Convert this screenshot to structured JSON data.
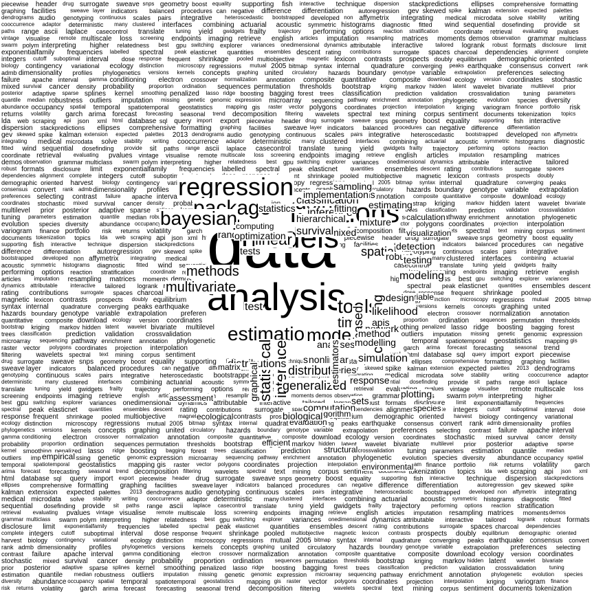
{
  "colors": {
    "text": "#000000",
    "background": "#ffffff"
  },
  "featured_words": [
    "data",
    "analysis",
    "models",
    "functions",
    "regression",
    "package",
    "using",
    "bayesian",
    "estimation",
    "model",
    "tools",
    "time",
    "linear",
    "methods",
    "multivariate",
    "inference",
    "statistical",
    "interface",
    "clustering",
    "distribution",
    "generalized",
    "based",
    "distributions",
    "classification",
    "algorithms",
    "network",
    "simulation",
    "mixed",
    "test",
    "selection",
    "tests",
    "survival",
    "random",
    "likelihood",
    "statistics",
    "spatial",
    "files",
    "analyses",
    "modeling",
    "robust",
    "fitting",
    "testing",
    "series",
    "graphical",
    "mixture",
    "sampling",
    "implementation",
    "visualization",
    "estimating",
    "computation",
    "optimization",
    "response",
    "nonlinear",
    "method",
    "detection",
    "plotting",
    "computing",
    "matrix",
    "variable",
    "estimators",
    "apis",
    "modelling",
    "hierarchical",
    "algorithm",
    "design",
    "sets",
    "species",
    "ecological",
    "evaluation",
    "structural",
    "assessment",
    "biological",
    "calculation",
    "efficient",
    "environmental",
    "empirical",
    "composite"
  ],
  "background_words": [
    "piecewise",
    "header",
    "drug",
    "surrogate",
    "sweave",
    "snps",
    "geometry",
    "boost",
    "equality",
    "supporting",
    "fish",
    "interactive",
    "technique",
    "dispersion",
    "stackpredictions",
    "ellipses",
    "comprehensive",
    "formatting",
    "graphing",
    "facilities",
    "sweave",
    "layer",
    "indicators",
    "balanced",
    "procedures",
    "can",
    "negative",
    "difference",
    "differentiation",
    "autoregression",
    "gev",
    "skewed",
    "spike",
    "kalman",
    "extension",
    "expected",
    "palettes",
    "2013",
    "dendrograms",
    "audio",
    "genotyping",
    "continuous",
    "scales",
    "pairs",
    "integrative",
    "heteroscedastic",
    "bootstrapped",
    "developed",
    "non",
    "affymetrix",
    "integrating",
    "medical",
    "microdata",
    "solve",
    "stability",
    "writing",
    "cooccurrence",
    "adaptor",
    "deterministic",
    "many",
    "clustered",
    "interfaces",
    "combining",
    "actuarial",
    "acoustic",
    "symmetric",
    "histograms",
    "diagnostic",
    "fitted",
    "wind",
    "sequential",
    "dosefinding",
    "provide",
    "sit",
    "paths",
    "range",
    "ascii",
    "laplace",
    "casecontrol",
    "translate",
    "tuning",
    "yield",
    "gwidgets",
    "frailty",
    "trajectory",
    "performing",
    "options",
    "reaction",
    "stratification",
    "coordinate",
    "retrieval",
    "evaluating",
    "pvalues",
    "vintage",
    "visualise",
    "remote",
    "multiscale",
    "loss",
    "screening",
    "endpoints",
    "imaging",
    "retrieve",
    "english",
    "articles",
    "imputation",
    "resampling",
    "matrices",
    "moments",
    "demos",
    "observation",
    "grammar",
    "multiclass",
    "swarm",
    "polym",
    "interpreting",
    "higher",
    "relatedness",
    "best",
    "gpu",
    "switching",
    "explorer",
    "variances",
    "onedimensional",
    "dynamics",
    "attributable",
    "interactive",
    "tailored",
    "logrank",
    "robust",
    "formats",
    "disclosure",
    "limit",
    "exponentialfamily",
    "frequencies",
    "labelled",
    "spectral",
    "peak",
    "elasticnet",
    "quantities",
    "ensembles",
    "descent",
    "rating",
    "contributions",
    "surrogate",
    "spaces",
    "charcoal",
    "dependencies",
    "alignment",
    "complete",
    "integers",
    "cutoff",
    "suboptimal",
    "interval",
    "dose",
    "response",
    "frequent",
    "shrinkage",
    "pooled",
    "multiobjective",
    "magnetic",
    "lexicon",
    "contrasts",
    "prospects",
    "doubly",
    "equilibrium",
    "demographic",
    "oriented",
    "harvest",
    "biology",
    "contingency",
    "variational",
    "ecology",
    "distinction",
    "microscopy",
    "regressions",
    "mutual",
    "2005",
    "bitmap",
    "syntax",
    "internal",
    "quadrature",
    "converging",
    "peaks",
    "earthquake",
    "consensus",
    "convert",
    "rank",
    "admb",
    "dimensionality",
    "profiles",
    "phylogenetics",
    "versions",
    "kernels",
    "concepts",
    "graphing",
    "united",
    "circulatory",
    "hazards",
    "boundary",
    "genotype",
    "variable",
    "extrapolation",
    "preferences",
    "selecting",
    "contrast",
    "failure",
    "apache",
    "interval",
    "gamma",
    "conditioning",
    "electron",
    "crossover",
    "normalization",
    "annotation",
    "composite",
    "quantitative",
    "composite",
    "download",
    "ecology",
    "version",
    "coordinates",
    "stochastic",
    "mixed",
    "survival",
    "cancer",
    "density",
    "probability",
    "proportion",
    "ordination",
    "sequences",
    "permutation",
    "thresholds",
    "bootstrap",
    "kriging",
    "markov",
    "hidden",
    "latent",
    "wavelet",
    "bivariate",
    "multilevel",
    "prior",
    "posterior",
    "adaptive",
    "sparse",
    "splines",
    "kernel",
    "smoothing",
    "penalized",
    "lasso",
    "ridge",
    "boosting",
    "bagging",
    "forest",
    "trees",
    "classification",
    "prediction",
    "validation",
    "crossvalidation",
    "tuning",
    "parameters",
    "estimation",
    "quantile",
    "median",
    "robustness",
    "outliers",
    "imputation",
    "missing",
    "genetic",
    "genomic",
    "expression",
    "microarray",
    "sequencing",
    "pathway",
    "enrichment",
    "annotation",
    "phylogenetic",
    "evolution",
    "species",
    "diversity",
    "abundance",
    "occupancy",
    "spatial",
    "temporal",
    "spatiotemporal",
    "geostatistics",
    "mapping",
    "gis",
    "raster",
    "vector",
    "polygons",
    "coordinates",
    "projection",
    "interpolation",
    "kriging",
    "variogram",
    "finance",
    "portfolio",
    "risk",
    "returns",
    "volatility",
    "garch",
    "arima",
    "forecast",
    "forecasting",
    "seasonal",
    "trend",
    "decomposition",
    "filtering",
    "wavelets",
    "spectral",
    "text",
    "mining",
    "corpus",
    "sentiment",
    "documents",
    "tokenization",
    "topics",
    "lda",
    "web",
    "scraping",
    "api",
    "json",
    "xml",
    "html",
    "database",
    "sql",
    "query",
    "import",
    "export"
  ]
}
